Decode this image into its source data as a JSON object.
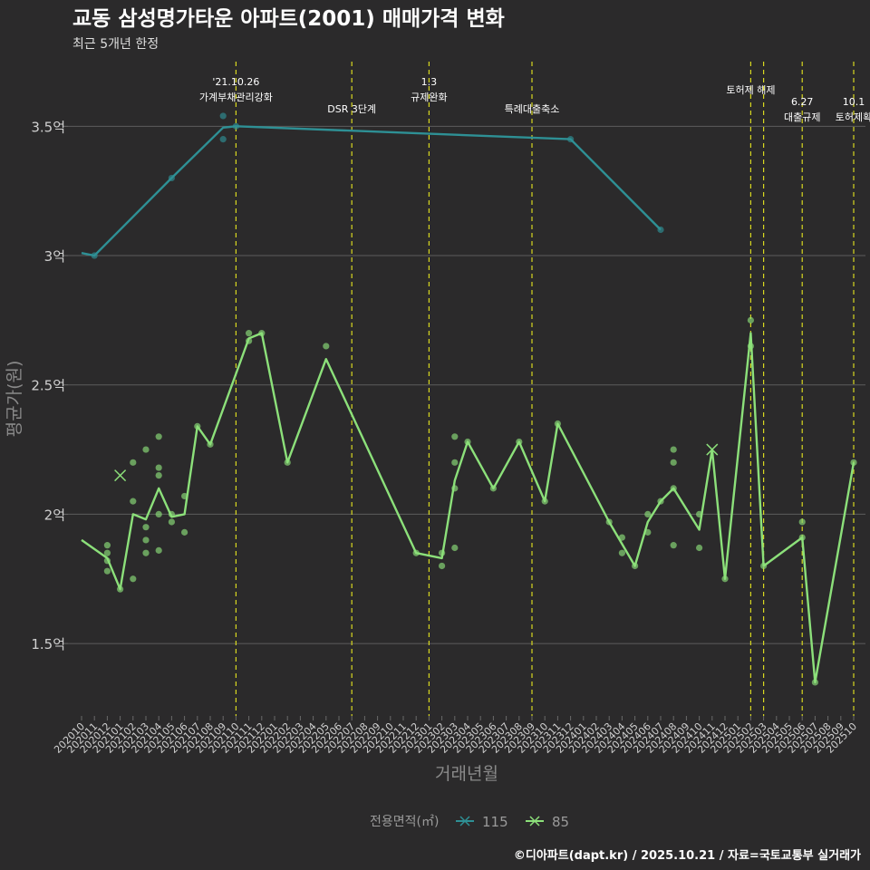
{
  "chart_data": {
    "type": "line",
    "title": "교동 삼성명가타운 아파트(2001) 매매가격 변화",
    "subtitle": "최근 5개년 한정",
    "xlabel": "거래년월",
    "ylabel": "평균가(원)",
    "ylim": [
      1.22,
      3.75
    ],
    "y_unit": "억",
    "yticks": [
      {
        "value": 1.5,
        "label": "1.5억"
      },
      {
        "value": 2.0,
        "label": "2억"
      },
      {
        "value": 2.5,
        "label": "2.5억"
      },
      {
        "value": 3.0,
        "label": "3억"
      },
      {
        "value": 3.5,
        "label": "3.5억"
      }
    ],
    "categories": [
      "202010",
      "202011",
      "202012",
      "202101",
      "202102",
      "202103",
      "202104",
      "202105",
      "202106",
      "202107",
      "202108",
      "202109",
      "202110",
      "202111",
      "202112",
      "202201",
      "202202",
      "202203",
      "202204",
      "202205",
      "202206",
      "202207",
      "202208",
      "202209",
      "202210",
      "202211",
      "202212",
      "202301",
      "202302",
      "202303",
      "202304",
      "202305",
      "202306",
      "202307",
      "202308",
      "202309",
      "202310",
      "202311",
      "202312",
      "202401",
      "202402",
      "202403",
      "202404",
      "202405",
      "202406",
      "202407",
      "202408",
      "202409",
      "202410",
      "202411",
      "202412",
      "202501",
      "202502",
      "202503",
      "202504",
      "202505",
      "202506",
      "202507",
      "202508",
      "202509",
      "202510"
    ],
    "series": [
      {
        "name": "115",
        "color": "#2e9095",
        "marker": "x",
        "line": [
          [
            0,
            3.01
          ],
          [
            1,
            3.0
          ],
          [
            7,
            3.3
          ],
          [
            11,
            3.495
          ],
          [
            12,
            3.5
          ],
          [
            38,
            3.45
          ],
          [
            45,
            3.1
          ]
        ],
        "points": [
          [
            1,
            3.0
          ],
          [
            7,
            3.3
          ],
          [
            11,
            3.54
          ],
          [
            11,
            3.45
          ],
          [
            12,
            3.5
          ],
          [
            38,
            3.45
          ],
          [
            45,
            3.1
          ]
        ]
      },
      {
        "name": "85",
        "color": "#8ce07a",
        "marker": "x",
        "line": [
          [
            0,
            1.9
          ],
          [
            2,
            1.83
          ],
          [
            3,
            1.71
          ],
          [
            4,
            2.0
          ],
          [
            5,
            1.98
          ],
          [
            6,
            2.1
          ],
          [
            7,
            1.99
          ],
          [
            8,
            2.0
          ],
          [
            9,
            2.34
          ],
          [
            10,
            2.27
          ],
          [
            13,
            2.68
          ],
          [
            14,
            2.7
          ],
          [
            16,
            2.2
          ],
          [
            19,
            2.6
          ],
          [
            26,
            1.85
          ],
          [
            28,
            1.83
          ],
          [
            29,
            2.13
          ],
          [
            30,
            2.28
          ],
          [
            32,
            2.1
          ],
          [
            34,
            2.28
          ],
          [
            36,
            2.05
          ],
          [
            37,
            2.35
          ],
          [
            41,
            1.97
          ],
          [
            43,
            1.8
          ],
          [
            44,
            1.97
          ],
          [
            45,
            2.05
          ],
          [
            46,
            2.1
          ],
          [
            48,
            1.94
          ],
          [
            49,
            2.25
          ],
          [
            50,
            1.75
          ],
          [
            52,
            2.7
          ],
          [
            53,
            1.8
          ],
          [
            56,
            1.91
          ],
          [
            57,
            1.35
          ],
          [
            60,
            2.2
          ]
        ],
        "points": [
          [
            2,
            1.88
          ],
          [
            2,
            1.85
          ],
          [
            2,
            1.82
          ],
          [
            2,
            1.78
          ],
          [
            3,
            1.71
          ],
          [
            4,
            2.2
          ],
          [
            4,
            2.05
          ],
          [
            4,
            1.75
          ],
          [
            5,
            2.25
          ],
          [
            5,
            1.95
          ],
          [
            5,
            1.9
          ],
          [
            5,
            1.85
          ],
          [
            6,
            2.3
          ],
          [
            6,
            2.18
          ],
          [
            6,
            2.15
          ],
          [
            6,
            2.0
          ],
          [
            6,
            1.86
          ],
          [
            7,
            2.0
          ],
          [
            7,
            1.97
          ],
          [
            8,
            2.07
          ],
          [
            8,
            1.93
          ],
          [
            9,
            2.34
          ],
          [
            10,
            2.27
          ],
          [
            13,
            2.7
          ],
          [
            13,
            2.67
          ],
          [
            14,
            2.7
          ],
          [
            16,
            2.2
          ],
          [
            19,
            2.65
          ],
          [
            26,
            1.85
          ],
          [
            28,
            1.85
          ],
          [
            28,
            1.8
          ],
          [
            29,
            2.3
          ],
          [
            29,
            2.2
          ],
          [
            29,
            2.1
          ],
          [
            29,
            1.87
          ],
          [
            30,
            2.28
          ],
          [
            32,
            2.1
          ],
          [
            34,
            2.28
          ],
          [
            36,
            2.05
          ],
          [
            37,
            2.35
          ],
          [
            41,
            1.97
          ],
          [
            42,
            1.91
          ],
          [
            42,
            1.85
          ],
          [
            43,
            1.8
          ],
          [
            44,
            2.0
          ],
          [
            44,
            1.93
          ],
          [
            45,
            2.05
          ],
          [
            46,
            2.25
          ],
          [
            46,
            2.2
          ],
          [
            46,
            2.1
          ],
          [
            46,
            1.88
          ],
          [
            48,
            2.0
          ],
          [
            48,
            1.87
          ],
          [
            50,
            1.75
          ],
          [
            52,
            2.75
          ],
          [
            52,
            2.65
          ],
          [
            53,
            1.8
          ],
          [
            56,
            1.97
          ],
          [
            56,
            1.91
          ],
          [
            57,
            1.35
          ],
          [
            60,
            2.2
          ]
        ],
        "x_marks": [
          [
            3,
            2.15
          ],
          [
            49,
            2.25
          ]
        ]
      }
    ],
    "events": [
      {
        "x": 12,
        "lines": [
          "'21.10.26",
          "가계부채관리강화"
        ]
      },
      {
        "x": 21,
        "lines": [
          "DSR 3단계"
        ]
      },
      {
        "x": 27,
        "lines": [
          "1.3",
          "규제완화"
        ]
      },
      {
        "x": 35,
        "lines": [
          "특례대출축소"
        ]
      },
      {
        "x": 52,
        "lines": [
          "토허제 해제"
        ]
      },
      {
        "x": 53,
        "lines": []
      },
      {
        "x": 56,
        "lines": [
          "6.27",
          "대출규제"
        ]
      },
      {
        "x": 60,
        "lines": [
          "10.1",
          "토허제확"
        ]
      }
    ],
    "legend": {
      "title": "전용면적(㎡)",
      "position": "bottom",
      "entries": [
        "115",
        "85"
      ]
    }
  },
  "footer": {
    "credit": "©디아파트(dapt.kr) / 2025.10.21 / 자료=국토교통부 실거래가"
  }
}
